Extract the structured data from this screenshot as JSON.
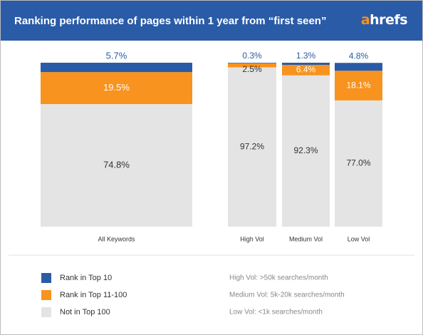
{
  "chart_data": {
    "type": "bar",
    "stacked": true,
    "title": "Ranking performance of pages within 1 year from “first seen”",
    "logo": "ahrefs",
    "categories": [
      "All Keywords",
      "High Vol",
      "Medium Vol",
      "Low Vol"
    ],
    "series": [
      {
        "name": "Not in Top 100",
        "color": "#e4e4e4",
        "values": [
          74.8,
          97.2,
          92.3,
          77.0
        ],
        "value_labels": [
          "74.8%",
          "97.2%",
          "92.3%",
          "77.0%"
        ]
      },
      {
        "name": "Rank in Top 11-100",
        "color": "#f7931e",
        "values": [
          19.5,
          2.5,
          6.4,
          18.1
        ],
        "value_labels": [
          "19.5%",
          "2.5%",
          "6.4%",
          "18.1%"
        ]
      },
      {
        "name": "Rank in Top 10",
        "color": "#2a5ba6",
        "values": [
          5.7,
          0.3,
          1.3,
          4.8
        ],
        "value_labels": [
          "5.7%",
          "0.3%",
          "1.3%",
          "4.8%"
        ]
      }
    ],
    "ylim": [
      0,
      100
    ],
    "notes": [
      "High Vol: >50k searches/month",
      "Medium Vol: 5k-20k searches/month",
      "Low Vol: <1k searches/month"
    ]
  }
}
